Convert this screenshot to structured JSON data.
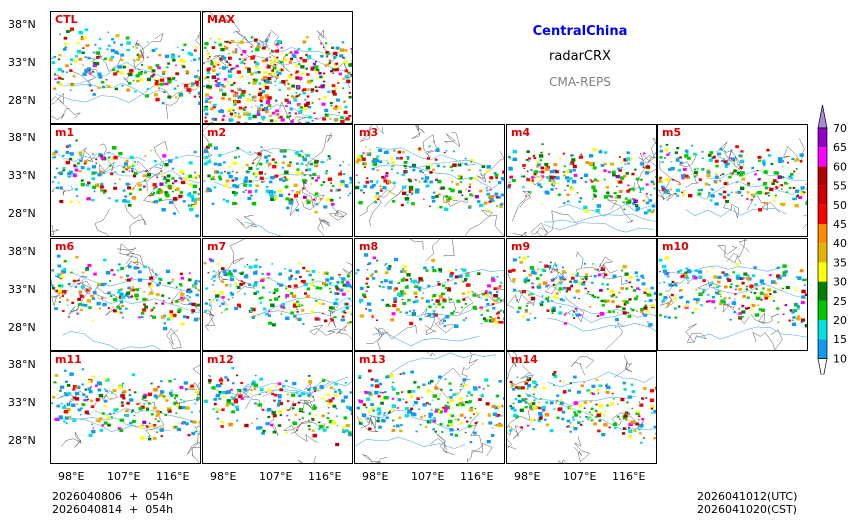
{
  "header": {
    "region": "CentralChina",
    "variable": "radarCRX",
    "system": "CMA-REPS",
    "region_color": "#0000ff",
    "system_color": "#808080"
  },
  "panels": [
    "CTL",
    "MAX",
    "m1",
    "m2",
    "m3",
    "m4",
    "m5",
    "m6",
    "m7",
    "m8",
    "m9",
    "m10",
    "m11",
    "m12",
    "m13",
    "m14"
  ],
  "lat_ticks": [
    "38°N",
    "33°N",
    "28°N"
  ],
  "lon_ticks": [
    "98°E",
    "107°E",
    "116°E"
  ],
  "footer": {
    "init_line1": "2026040806  +  054h",
    "init_line2": "2026040814  +  054h",
    "valid_utc": "2026041012(UTC)",
    "valid_cst": "2026041020(CST)"
  },
  "colorbar": {
    "levels": [
      "10",
      "15",
      "20",
      "25",
      "30",
      "35",
      "40",
      "45",
      "50",
      "55",
      "60",
      "65",
      "70"
    ],
    "colors": [
      "#0c9cf0",
      "#00e0e0",
      "#00c800",
      "#008000",
      "#ffff00",
      "#e6b400",
      "#ff8c00",
      "#ff0000",
      "#d20000",
      "#b40000",
      "#ff00ff",
      "#9400c8"
    ],
    "over_color": "#aa88dd"
  }
}
